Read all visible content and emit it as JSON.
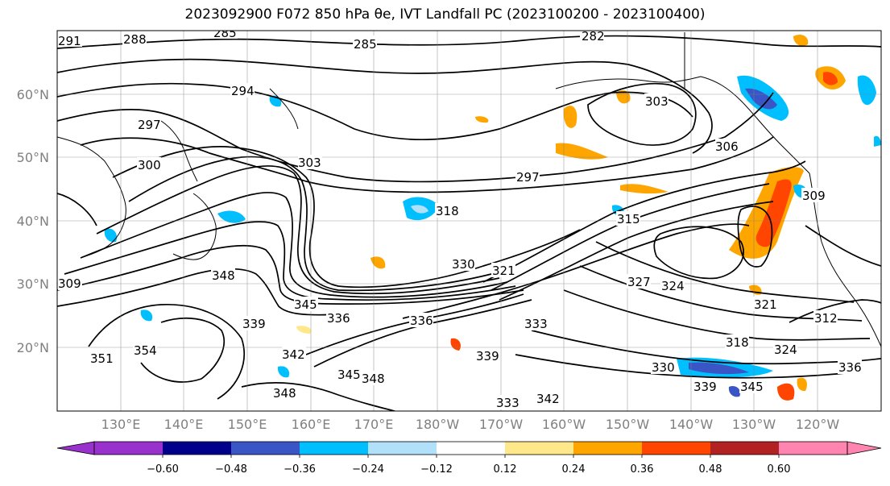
{
  "title": "2023092900 F072 850 hPa θe, IVT Landfall PC (2023100200 - 2023100400)",
  "lat_labels": [
    "60°N",
    "50°N",
    "40°N",
    "30°N",
    "20°N"
  ],
  "lon_labels": [
    "130°E",
    "140°E",
    "150°E",
    "160°E",
    "170°E",
    "180°W",
    "170°W",
    "160°W",
    "150°W",
    "140°W",
    "130°W",
    "120°W"
  ],
  "colorbar": {
    "colors": [
      "#9932cc",
      "#00008b",
      "#3a56c6",
      "#00bfff",
      "#b0e0fa",
      "#ffffff",
      "#ffe88a",
      "#ffa500",
      "#ff4500",
      "#b22222",
      "#ff85b0"
    ],
    "tick_labels": [
      "−0.60",
      "−0.48",
      "−0.36",
      "−0.24",
      "−0.12",
      "0.12",
      "0.24",
      "0.36",
      "0.48",
      "0.60"
    ]
  },
  "contour_labels": [
    {
      "text": "291"
    },
    {
      "text": "288"
    },
    {
      "text": "285"
    },
    {
      "text": "285"
    },
    {
      "text": "282"
    },
    {
      "text": "294"
    },
    {
      "text": "297"
    },
    {
      "text": "300"
    },
    {
      "text": "303"
    },
    {
      "text": "303"
    },
    {
      "text": "297"
    },
    {
      "text": "306"
    },
    {
      "text": "309"
    },
    {
      "text": "315"
    },
    {
      "text": "318"
    },
    {
      "text": "321"
    },
    {
      "text": "324"
    },
    {
      "text": "327"
    },
    {
      "text": "321"
    },
    {
      "text": "330"
    },
    {
      "text": "333"
    },
    {
      "text": "336"
    },
    {
      "text": "339"
    },
    {
      "text": "342"
    },
    {
      "text": "345"
    },
    {
      "text": "348"
    },
    {
      "text": "351"
    },
    {
      "text": "354"
    },
    {
      "text": "318"
    },
    {
      "text": "324"
    },
    {
      "text": "330"
    },
    {
      "text": "336"
    },
    {
      "text": "339"
    },
    {
      "text": "345"
    },
    {
      "text": "348"
    },
    {
      "text": "312"
    },
    {
      "text": "309"
    },
    {
      "text": "342"
    },
    {
      "text": "339"
    },
    {
      "text": "348"
    },
    {
      "text": "333"
    },
    {
      "text": "336"
    },
    {
      "text": "345"
    }
  ]
}
